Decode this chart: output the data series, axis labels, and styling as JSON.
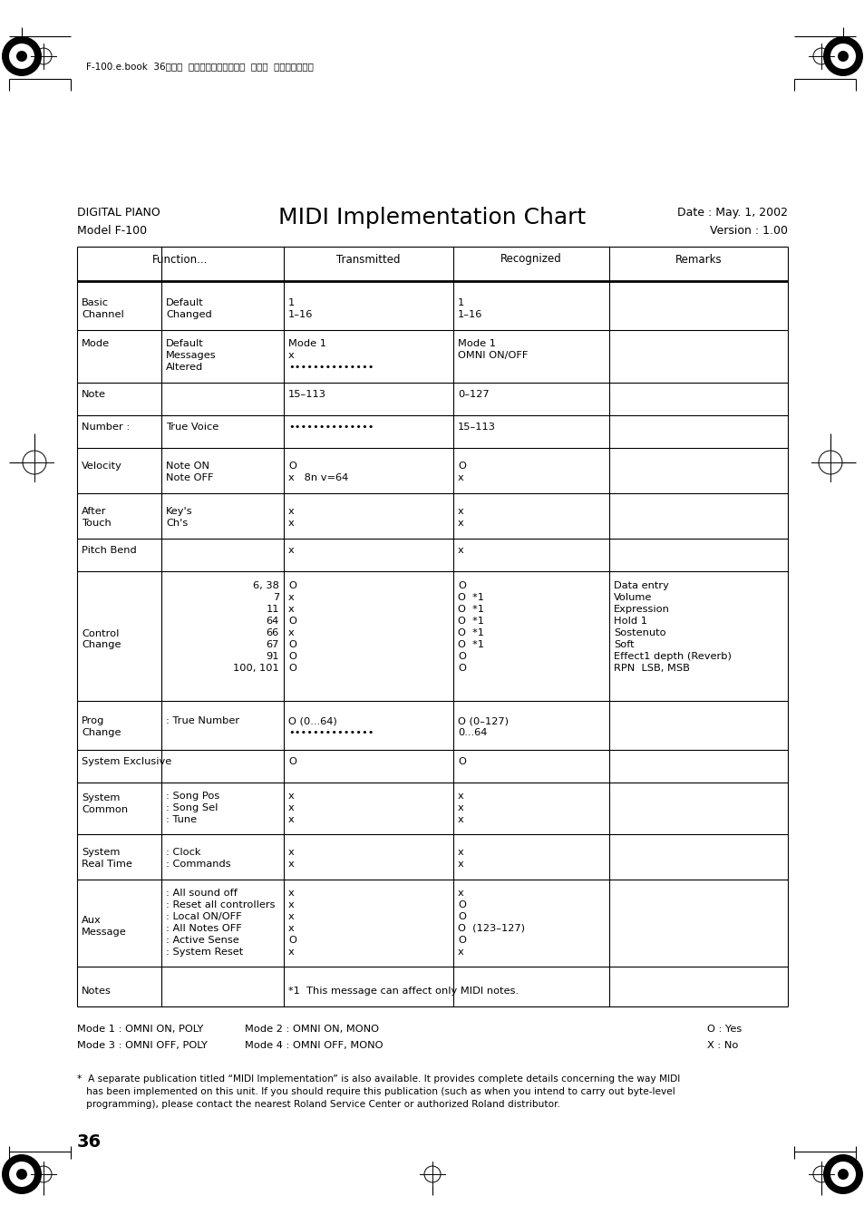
{
  "title": "MIDI Implementation Chart",
  "digital_piano": "DIGITAL PIANO",
  "model": "Model F-100",
  "date": "Date : May. 1, 2002",
  "version": "Version : 1.00",
  "header_japanese": "F-100.e.book  36ページ  ２００３年８月２９日  金曜日  午前９時４８分",
  "page_number": "36",
  "footnote": "*  A separate publication titled “MIDI Implementation” is also available. It provides complete details concerning the way MIDI\n   has been implemented on this unit. If you should require this publication (such as when you intend to carry out byte-level\n   programming), please contact the nearest Roland Service Center or authorized Roland distributor.",
  "bg_color": "#ffffff"
}
